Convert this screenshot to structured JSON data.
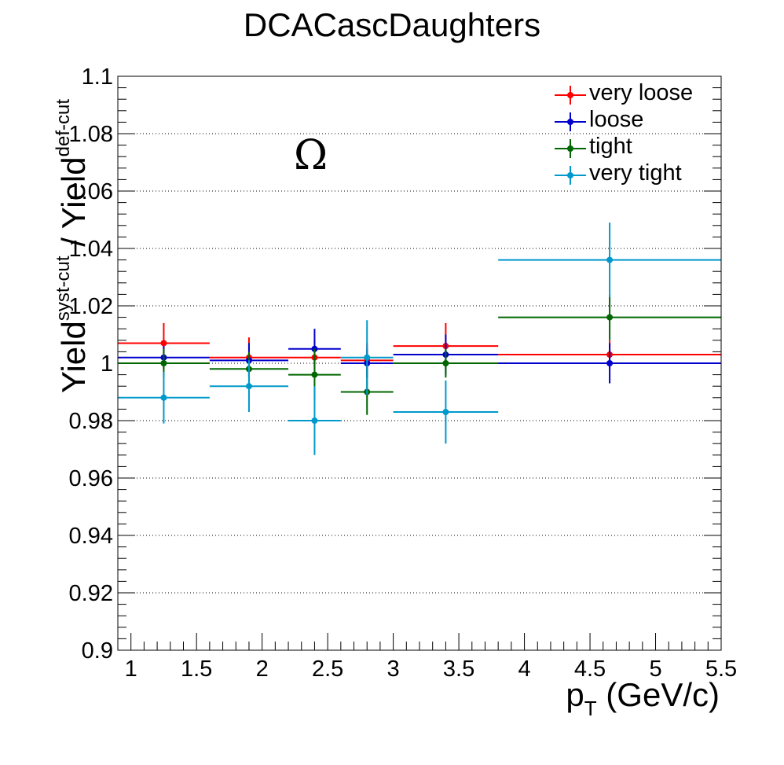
{
  "chart_data": {
    "type": "scatter",
    "title": "DCACascDaughters",
    "annotation": "Ω",
    "xlabel": {
      "main": "p",
      "sub": "T",
      "rest": " (GeV/c)"
    },
    "ylabel": {
      "part1": "Yield",
      "sup1": "syst-cut",
      "part2": " / Yield",
      "sup2": "def-cut"
    },
    "xlim": [
      0.9,
      5.5
    ],
    "ylim": [
      0.9,
      1.1
    ],
    "x_ticks": [
      "1",
      "1.5",
      "2",
      "2.5",
      "3",
      "3.5",
      "4",
      "4.5",
      "5",
      "5.5"
    ],
    "y_ticks": [
      "0.9",
      "0.92",
      "0.94",
      "0.96",
      "0.98",
      "1",
      "1.02",
      "1.04",
      "1.06",
      "1.08",
      "1.1"
    ],
    "grid": "horizontal dotted",
    "legend_position": "top-right",
    "bins": [
      {
        "lo": 0.9,
        "hi": 1.6,
        "center": 1.25
      },
      {
        "lo": 1.6,
        "hi": 2.2,
        "center": 1.9
      },
      {
        "lo": 2.2,
        "hi": 2.6,
        "center": 2.4
      },
      {
        "lo": 2.6,
        "hi": 3.0,
        "center": 2.8
      },
      {
        "lo": 3.0,
        "hi": 3.8,
        "center": 3.4
      },
      {
        "lo": 3.8,
        "hi": 5.5,
        "center": 4.65
      }
    ],
    "series": [
      {
        "name": "very loose",
        "color": "#ff0000",
        "values": [
          1.007,
          1.002,
          1.002,
          1.001,
          1.006,
          1.003
        ],
        "errors": [
          0.007,
          0.007,
          0.006,
          0.006,
          0.008,
          0.005
        ]
      },
      {
        "name": "loose",
        "color": "#0000cc",
        "values": [
          1.002,
          1.001,
          1.005,
          1.0,
          1.003,
          1.0
        ],
        "errors": [
          0.004,
          0.006,
          0.007,
          0.005,
          0.007,
          0.007
        ]
      },
      {
        "name": "tight",
        "color": "#006600",
        "values": [
          1.0,
          0.998,
          0.996,
          0.99,
          1.0,
          1.016
        ],
        "errors": [
          0.005,
          0.006,
          0.009,
          0.008,
          0.005,
          0.008
        ]
      },
      {
        "name": "very tight",
        "color": "#0099cc",
        "values": [
          0.988,
          0.992,
          0.98,
          1.002,
          0.983,
          1.036
        ],
        "errors": [
          0.009,
          0.009,
          0.012,
          0.013,
          0.011,
          0.013
        ]
      }
    ]
  }
}
